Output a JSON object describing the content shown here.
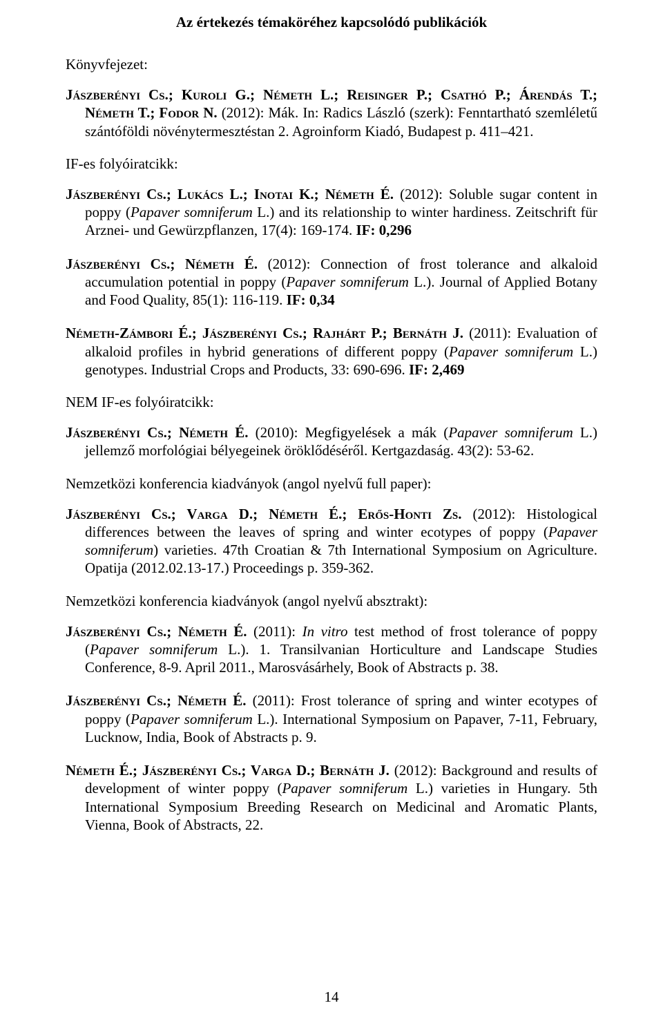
{
  "title": "Az értekezés témaköréhez kapcsolódó publikációk",
  "page_number": "14",
  "sections": {
    "konyvfejezet_label": "Könyvfejezet:",
    "if_label": "IF-es folyóiratcikk:",
    "nem_if_label": "NEM IF-es folyóiratcikk:",
    "nk_full_label": "Nemzetközi konferencia kiadványok (angol nyelvű full paper):",
    "nk_abs_label": "Nemzetközi konferencia kiadványok (angol nyelvű absztrakt):"
  },
  "e1": {
    "authors": "Jászberényi Cs.; Kuroli G.; Németh L.; Reisinger P.; Csathó P.; Árendás T.; Németh T.; Fodor N.",
    "rest": " (2012): Mák. In: Radics László (szerk): Fenntartható szemléletű szántóföldi növénytermesztéstan 2. Agroinform Kiadó, Budapest p. 411–421."
  },
  "e2": {
    "authors": "Jászberényi Cs.; Lukács L.; Inotai K.; Németh É.",
    "t1": " (2012): Soluble sugar content in poppy (",
    "it1": "Papaver somniferum",
    "t2": " L.) and its relationship to winter hardiness. Zeitschrift für Arznei- und Gewürzpflanzen, 17(4): 169-174. ",
    "if": "IF: 0,296"
  },
  "e3": {
    "authors": "Jászberényi Cs.; Németh É.",
    "t1": " (2012): Connection of frost tolerance and alkaloid accumulation potential in poppy (",
    "it1": "Papaver somniferum",
    "t2": " L.). Journal of Applied Botany and Food Quality, 85(1): 116-119. ",
    "if": "IF: 0,34"
  },
  "e4": {
    "authors": "Németh-Zámbori É.; Jászberényi Cs.; Rajhárt P.; Bernáth J.",
    "t1": " (2011): Evaluation of alkaloid profiles in hybrid generations of different poppy (",
    "it1": "Papaver somniferum",
    "t2": " L.) genotypes. Industrial Crops and Products, 33: 690-696. ",
    "if": "IF: 2,469"
  },
  "e5": {
    "authors": "Jászberényi Cs.; Németh É.",
    "t1": " (2010): Megfigyelések a mák (",
    "it1": "Papaver somniferum",
    "t2": " L.) jellemző morfológiai bélyegeinek öröklődéséről. Kertgazdaság. 43(2): 53-62."
  },
  "e6": {
    "authors": "Jászberényi Cs.; Varga D.; Németh É.; Erős-Honti Zs.",
    "t1": " (2012): Histological differences between the leaves of spring and winter ecotypes of poppy (",
    "it1": "Papaver somniferum",
    "t2": ") varieties. 47th Croatian & 7th International Symposium on Agriculture. Opatija (2012.02.13-17.) Proceedings p. 359-362."
  },
  "e7": {
    "authors": "Jászberényi Cs.; Németh É.",
    "t1": " (2011): ",
    "it1": "In vitro",
    "t2": " test method of frost tolerance of poppy (",
    "it2": "Papaver somniferum",
    "t3": " L.). 1. Transilvanian Horticulture and Landscape Studies Conference, 8-9. April 2011., Marosvásárhely, Book of Abstracts p. 38."
  },
  "e8": {
    "authors": "Jászberényi Cs.; Németh É.",
    "t1": " (2011): Frost tolerance of spring and winter ecotypes of poppy (",
    "it1": "Papaver somniferum",
    "t2": " L.). International Symposium on Papaver, 7-11, February, Lucknow, India, Book of Abstracts p. 9."
  },
  "e9": {
    "authors": "Németh É.; Jászberényi Cs.; Varga D.; Bernáth J.",
    "t1": " (2012): Background and results of development of winter poppy (",
    "it1": "Papaver somniferum",
    "t2": " L.) varieties in Hungary. 5th International Symposium Breeding Research on Medicinal and Aromatic Plants, Vienna, Book of Abstracts, 22."
  }
}
